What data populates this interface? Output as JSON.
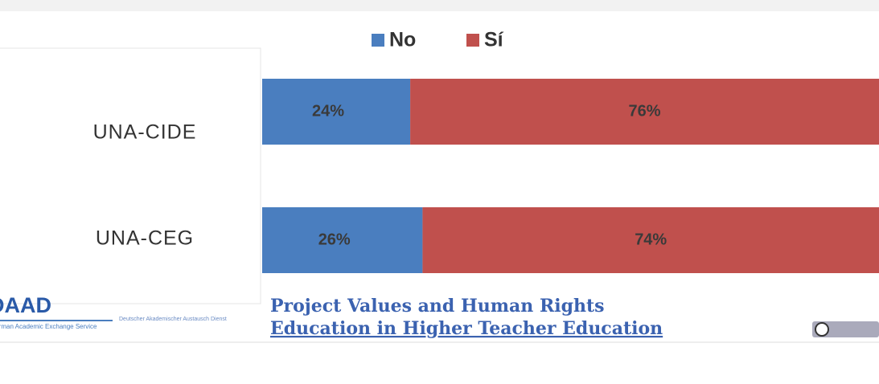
{
  "chart_data": {
    "type": "stacked-bar-horizontal",
    "categories": [
      "UNA-CIDE",
      "UNA-CEG"
    ],
    "series": [
      {
        "name": "No",
        "color": "#4a7ebf",
        "values": [
          24,
          26
        ],
        "value_labels": [
          "24%",
          "26%"
        ]
      },
      {
        "name": "Sí",
        "color": "#c0504d",
        "values": [
          76,
          74
        ],
        "value_labels": [
          "76%",
          "74%"
        ]
      }
    ]
  },
  "footer": {
    "logo": "DAAD",
    "logo_subtitle": "German Academic Exchange Service",
    "logo_tagline": "Deutscher Akademischer Austausch Dienst",
    "project_lines": [
      "Project Values and Human Rights",
      "Education in Higher Teacher Education"
    ]
  }
}
